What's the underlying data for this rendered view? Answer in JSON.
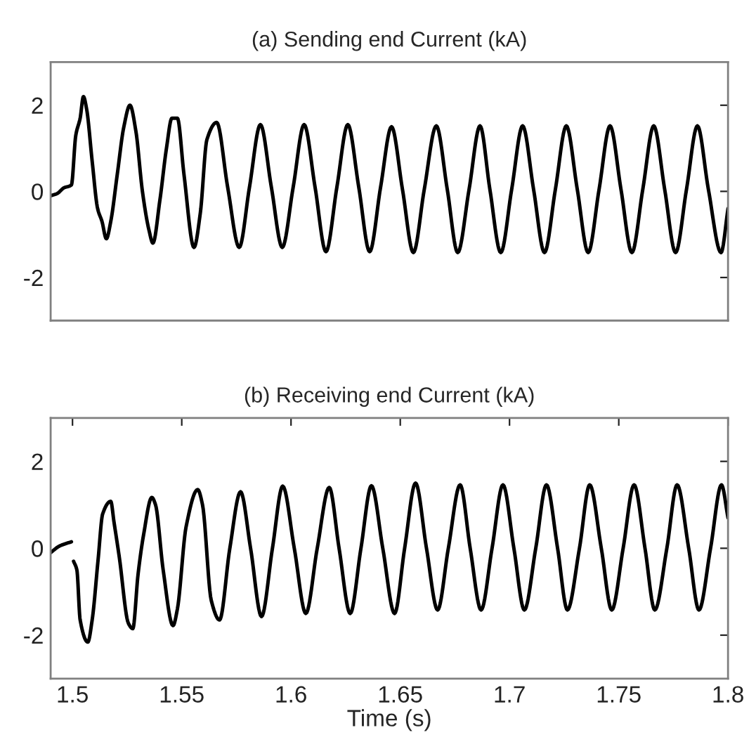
{
  "chart_data": [
    {
      "type": "line",
      "title": "(a) Sending end Current (kA)",
      "tick_labels": "y",
      "grid": false,
      "legend": false,
      "xlim": [
        1.49,
        1.8
      ],
      "ylim": [
        -3,
        3
      ],
      "yticks": [
        -2,
        0,
        2
      ],
      "line_style": "solid",
      "marker": "none",
      "series": [
        {
          "color": "#000000",
          "x": [
            1.49,
            1.493,
            1.496,
            1.4995,
            1.5015,
            1.5035,
            1.505,
            1.5065,
            1.509,
            1.5115,
            1.5135,
            1.5155,
            1.5175,
            1.5205,
            1.5235,
            1.5263,
            1.529,
            1.532,
            1.535,
            1.5368,
            1.54,
            1.543,
            1.5455,
            1.548,
            1.551,
            1.5556,
            1.5585,
            1.5615,
            1.566,
            1.571,
            1.5763,
            1.581,
            1.586,
            1.591,
            1.596,
            1.601,
            1.606,
            1.611,
            1.616,
            1.621,
            1.626,
            1.631,
            1.636,
            1.641,
            1.646,
            1.651,
            1.656,
            1.661,
            1.6665,
            1.6715,
            1.6763,
            1.6815,
            1.6865,
            1.691,
            1.696,
            1.701,
            1.706,
            1.711,
            1.716,
            1.721,
            1.726,
            1.731,
            1.736,
            1.741,
            1.746,
            1.751,
            1.756,
            1.761,
            1.766,
            1.771,
            1.776,
            1.781,
            1.786,
            1.791,
            1.7968,
            1.8
          ],
          "values": [
            -0.1,
            -0.05,
            0.08,
            0.15,
            1.3,
            1.7,
            2.2,
            1.9,
            0.7,
            -0.4,
            -0.7,
            -1.1,
            -0.7,
            0.4,
            1.5,
            2.0,
            1.4,
            0.0,
            -0.9,
            -1.2,
            -0.2,
            1.0,
            1.7,
            1.7,
            0.4,
            -1.3,
            -0.5,
            1.2,
            1.6,
            0.1,
            -1.3,
            0.1,
            1.55,
            0.1,
            -1.3,
            0.1,
            1.55,
            0.1,
            -1.4,
            0.1,
            1.55,
            0.1,
            -1.4,
            0.1,
            1.5,
            0.05,
            -1.42,
            0.05,
            1.52,
            0.05,
            -1.42,
            0.05,
            1.52,
            0.05,
            -1.42,
            0.05,
            1.52,
            0.05,
            -1.42,
            0.05,
            1.52,
            0.05,
            -1.42,
            0.05,
            1.52,
            0.05,
            -1.42,
            0.05,
            1.52,
            0.05,
            -1.42,
            0.05,
            1.52,
            0.05,
            -1.42,
            -0.4
          ]
        }
      ]
    },
    {
      "type": "line",
      "title": "(b) Receiving end Current (kA)",
      "xlabel": "Time (s)",
      "grid": false,
      "legend": false,
      "xlim": [
        1.49,
        1.8
      ],
      "ylim": [
        -3,
        3
      ],
      "xticks": [
        1.5,
        1.55,
        1.6,
        1.65,
        1.7,
        1.75,
        1.8
      ],
      "yticks": [
        -2,
        0,
        2
      ],
      "line_style": "solid",
      "marker": "none",
      "series": [
        {
          "color": "#000000",
          "x": [
            1.49,
            1.494,
            1.4995,
            1.4998,
            1.5001,
            1.5005,
            1.502,
            1.5035,
            1.507,
            1.509,
            1.5117,
            1.5138,
            1.5175,
            1.519,
            1.5214,
            1.5256,
            1.5276,
            1.53,
            1.5325,
            1.5363,
            1.538,
            1.5415,
            1.546,
            1.548,
            1.552,
            1.5573,
            1.5595,
            1.5635,
            1.5673,
            1.572,
            1.5769,
            1.5815,
            1.5865,
            1.5915,
            1.5962,
            1.6015,
            1.6068,
            1.612,
            1.6175,
            1.622,
            1.6271,
            1.632,
            1.6368,
            1.642,
            1.6474,
            1.652,
            1.657,
            1.662,
            1.6671,
            1.672,
            1.6774,
            1.682,
            1.687,
            1.692,
            1.697,
            1.702,
            1.7068,
            1.712,
            1.7169,
            1.722,
            1.7265,
            1.732,
            1.7367,
            1.742,
            1.7468,
            1.752,
            1.757,
            1.762,
            1.7665,
            1.772,
            1.7767,
            1.782,
            1.7867,
            1.792,
            1.797,
            1.8
          ],
          "values": [
            -0.1,
            0.05,
            0.15,
            null,
            null,
            -0.3,
            -0.5,
            -1.65,
            -2.16,
            -1.65,
            -0.27,
            0.79,
            1.08,
            0.6,
            -0.2,
            -1.73,
            -1.85,
            -0.6,
            0.3,
            1.17,
            1.0,
            -0.5,
            -1.78,
            -1.4,
            0.5,
            1.35,
            1.0,
            -1.2,
            -1.65,
            0.0,
            1.3,
            0.0,
            -1.57,
            0.0,
            1.43,
            0.0,
            -1.5,
            0.0,
            1.4,
            0.0,
            -1.5,
            0.0,
            1.44,
            0.0,
            -1.5,
            0.0,
            1.5,
            0.0,
            -1.42,
            0.0,
            1.46,
            0.0,
            -1.42,
            0.0,
            1.46,
            0.0,
            -1.42,
            0.0,
            1.46,
            0.0,
            -1.42,
            0.0,
            1.46,
            0.0,
            -1.42,
            0.0,
            1.46,
            0.0,
            -1.42,
            0.0,
            1.46,
            0.0,
            -1.42,
            0.0,
            1.46,
            0.7
          ]
        }
      ]
    }
  ]
}
